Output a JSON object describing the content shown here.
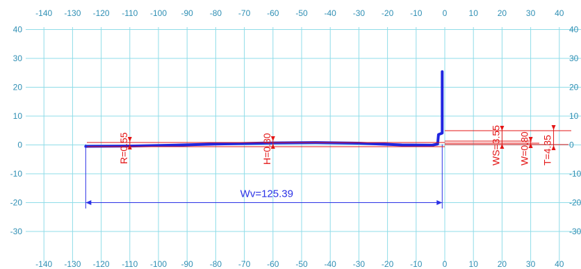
{
  "axes": {
    "x_ticks": [
      -140,
      -130,
      -120,
      -110,
      -100,
      -90,
      -80,
      -70,
      -60,
      -50,
      -40,
      -30,
      -20,
      -10,
      0,
      10,
      20,
      30,
      40
    ],
    "y_ticks": [
      40,
      30,
      20,
      10,
      0,
      -10,
      -20,
      -30
    ],
    "tick_color": "#2f8fb4",
    "grid_color": "#8fdce8"
  },
  "profile": {
    "color": "#1f25e0",
    "points": [
      [
        -125.4,
        -0.5
      ],
      [
        -110,
        -0.4
      ],
      [
        -95,
        -0.1
      ],
      [
        -80,
        0.3
      ],
      [
        -60,
        0.7
      ],
      [
        -45,
        0.8
      ],
      [
        -30,
        0.6
      ],
      [
        -15,
        0.0
      ],
      [
        -4.5,
        -0.1
      ],
      [
        -2.5,
        0.3
      ],
      [
        -2.2,
        3.6
      ],
      [
        -0.9,
        4.1
      ],
      [
        -0.9,
        25.4
      ]
    ]
  },
  "dimensions": {
    "wv": {
      "label": "Wv=125.39",
      "x_start": -125.4,
      "x_end": -0.9,
      "y": -20
    },
    "r": {
      "label": "R=0.55",
      "x": -110
    },
    "h": {
      "label": "H=0.80",
      "x": -60
    },
    "ws": {
      "label": "WS=3.55",
      "x": 20
    },
    "w": {
      "label": "W=0.80",
      "x": 30
    },
    "t": {
      "label": "T=4.35",
      "x": 38
    },
    "red_color": "#e31515",
    "blue_color": "#2a31e6"
  }
}
